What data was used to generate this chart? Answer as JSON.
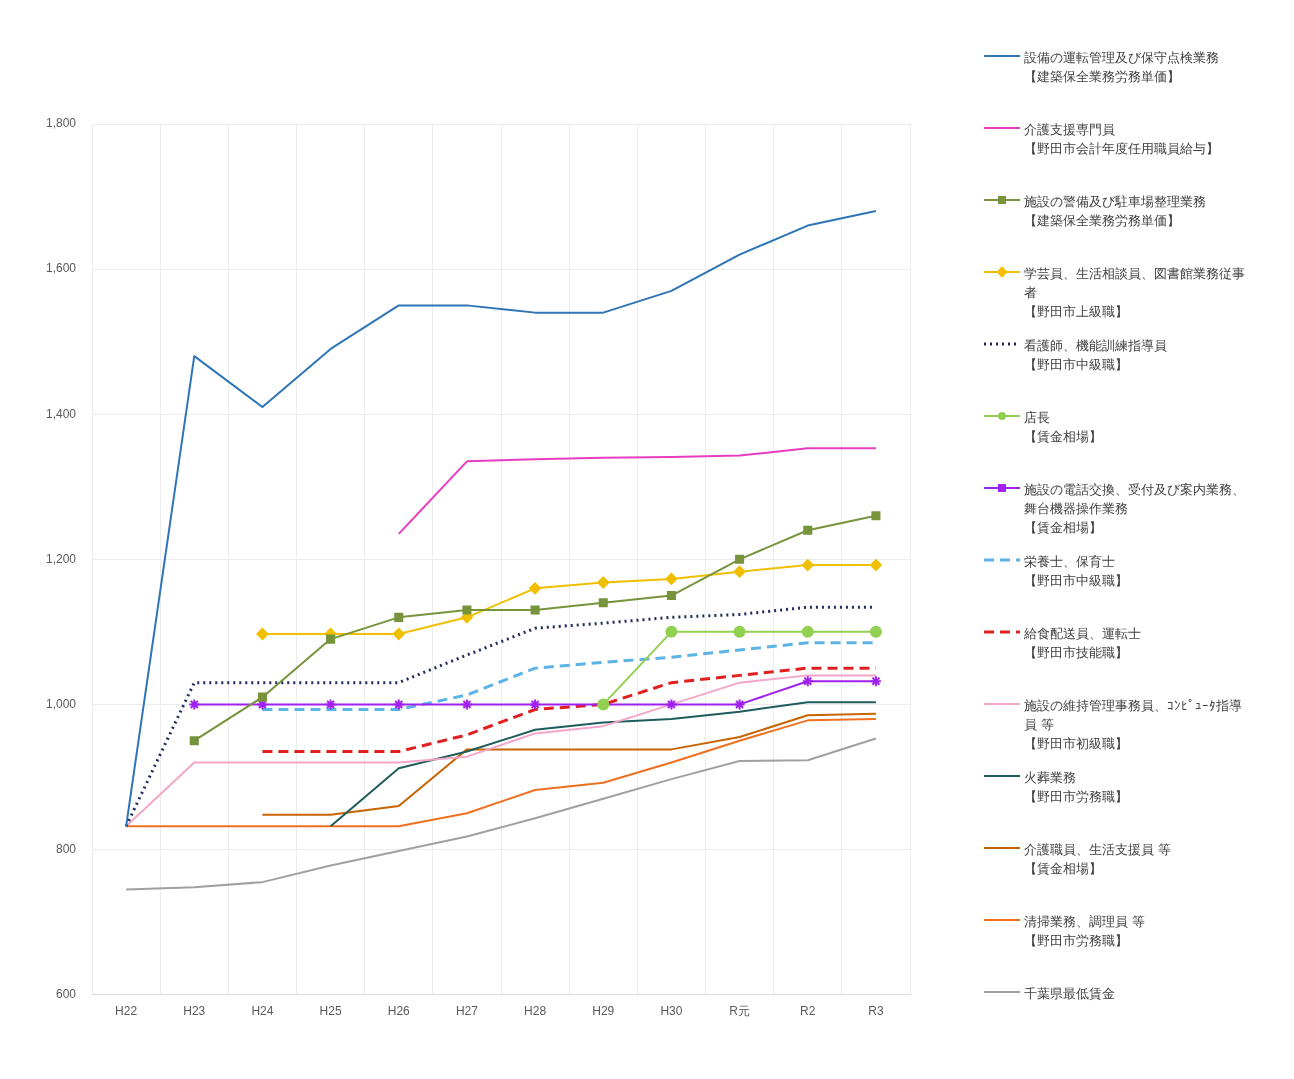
{
  "chart_data": {
    "type": "line",
    "categories": [
      "H22",
      "H23",
      "H24",
      "H25",
      "H26",
      "H27",
      "H28",
      "H29",
      "H30",
      "R元",
      "R2",
      "R3"
    ],
    "ylim": [
      600,
      1800
    ],
    "yticks": [
      {
        "value": 600,
        "label": "600"
      },
      {
        "value": 800,
        "label": "800"
      },
      {
        "value": 1000,
        "label": "1,000"
      },
      {
        "value": 1200,
        "label": "1,200"
      },
      {
        "value": 1400,
        "label": "1,400"
      },
      {
        "value": 1600,
        "label": "1,600"
      },
      {
        "value": 1800,
        "label": "1,800"
      }
    ],
    "grid": true,
    "legend": "right",
    "series": [
      {
        "name": "設備の運転管理及び保守点検業務【建築保全業務労務単価】",
        "color": "#2e75b6",
        "marker": "none",
        "line_style": "solid",
        "values": [
          832,
          1480,
          1410,
          1490,
          1550,
          1550,
          1540,
          1540,
          1570,
          1620,
          1660,
          1680
        ]
      },
      {
        "name": "介護支援専門員【野田市会計年度任用職員給与】",
        "color": "#e83dc0",
        "marker": "none",
        "line_style": "solid",
        "values": [
          null,
          null,
          null,
          null,
          1235,
          1335,
          1338,
          1340,
          1341,
          1343,
          1353,
          1353
        ]
      },
      {
        "name": "施設の警備及び駐車場整理業務【建築保全業務労務単価】",
        "color": "#77933c",
        "marker": "square",
        "line_style": "solid",
        "values": [
          null,
          950,
          1010,
          1090,
          1120,
          1130,
          1130,
          1140,
          1150,
          1200,
          1240,
          1260
        ]
      },
      {
        "name": "学芸員、生活相談員、図書館業務従事者【野田市上級職】",
        "color": "#f0c000",
        "marker": "diamond",
        "line_style": "solid",
        "values": [
          null,
          null,
          1097,
          1097,
          1097,
          1120,
          1160,
          1168,
          1173,
          1183,
          1192,
          1192
        ]
      },
      {
        "name": "看護師、機能訓練指導員【野田市中級職】",
        "color": "#1f2a5e",
        "marker": "none",
        "line_style": "dotted",
        "values": [
          832,
          1030,
          1030,
          1030,
          1030,
          1068,
          1105,
          1112,
          1120,
          1124,
          1134,
          1134
        ]
      },
      {
        "name": "店長【賃金相場】",
        "color": "#92d050",
        "marker": "circle",
        "line_style": "solid",
        "values": [
          null,
          null,
          null,
          null,
          null,
          null,
          null,
          1000,
          1100,
          1100,
          1100,
          1100
        ]
      },
      {
        "name": "施設の電話交換、受付及び案内業務、舞台機器操作業務【賃金相場】",
        "color": "#a020f0",
        "marker": "cross",
        "line_style": "solid",
        "values": [
          null,
          1000,
          1000,
          1000,
          1000,
          1000,
          1000,
          1000,
          1000,
          1000,
          1032,
          1032
        ]
      },
      {
        "name": "栄養士、保育士【野田市中級職】",
        "color": "#5bb4e5",
        "marker": "none",
        "line_style": "dashed",
        "values": [
          null,
          null,
          993,
          993,
          993,
          1013,
          1050,
          1058,
          1065,
          1075,
          1085,
          1085
        ]
      },
      {
        "name": "給食配送員、運転士【野田市技能職】",
        "color": "#e02020",
        "marker": "none",
        "line_style": "dashed",
        "values": [
          null,
          null,
          935,
          935,
          935,
          958,
          993,
          1000,
          1030,
          1040,
          1050,
          1050
        ]
      },
      {
        "name": "施設の維持管理事務員、ｺﾝﾋﾟｭｰﾀ指導員 等【野田市初級職】",
        "color": "#f4a6c8",
        "marker": "none",
        "line_style": "solid",
        "values": [
          832,
          920,
          920,
          920,
          920,
          928,
          960,
          970,
          1000,
          1030,
          1040,
          1040
        ]
      },
      {
        "name": "火葬業務【野田市労務職】",
        "color": "#1f5c5c",
        "marker": "none",
        "line_style": "solid",
        "values": [
          null,
          null,
          null,
          832,
          912,
          935,
          965,
          975,
          980,
          990,
          1003,
          1003
        ]
      },
      {
        "name": "介護職員、生活支援員 等【賃金相場】",
        "color": "#c86400",
        "marker": "none",
        "line_style": "solid",
        "values": [
          null,
          null,
          848,
          848,
          860,
          938,
          938,
          938,
          938,
          955,
          985,
          987
        ]
      },
      {
        "name": "清掃業務、調理員 等【野田市労務職】",
        "color": "#f07020",
        "marker": "none",
        "line_style": "solid",
        "values": [
          832,
          832,
          832,
          832,
          832,
          850,
          882,
          892,
          920,
          950,
          978,
          980
        ]
      },
      {
        "name": "千葉県最低賃金",
        "color": "#a0a0a0",
        "marker": "none",
        "line_style": "solid",
        "values": [
          745,
          748,
          755,
          778,
          798,
          818,
          843,
          870,
          897,
          922,
          923,
          953
        ]
      }
    ]
  }
}
